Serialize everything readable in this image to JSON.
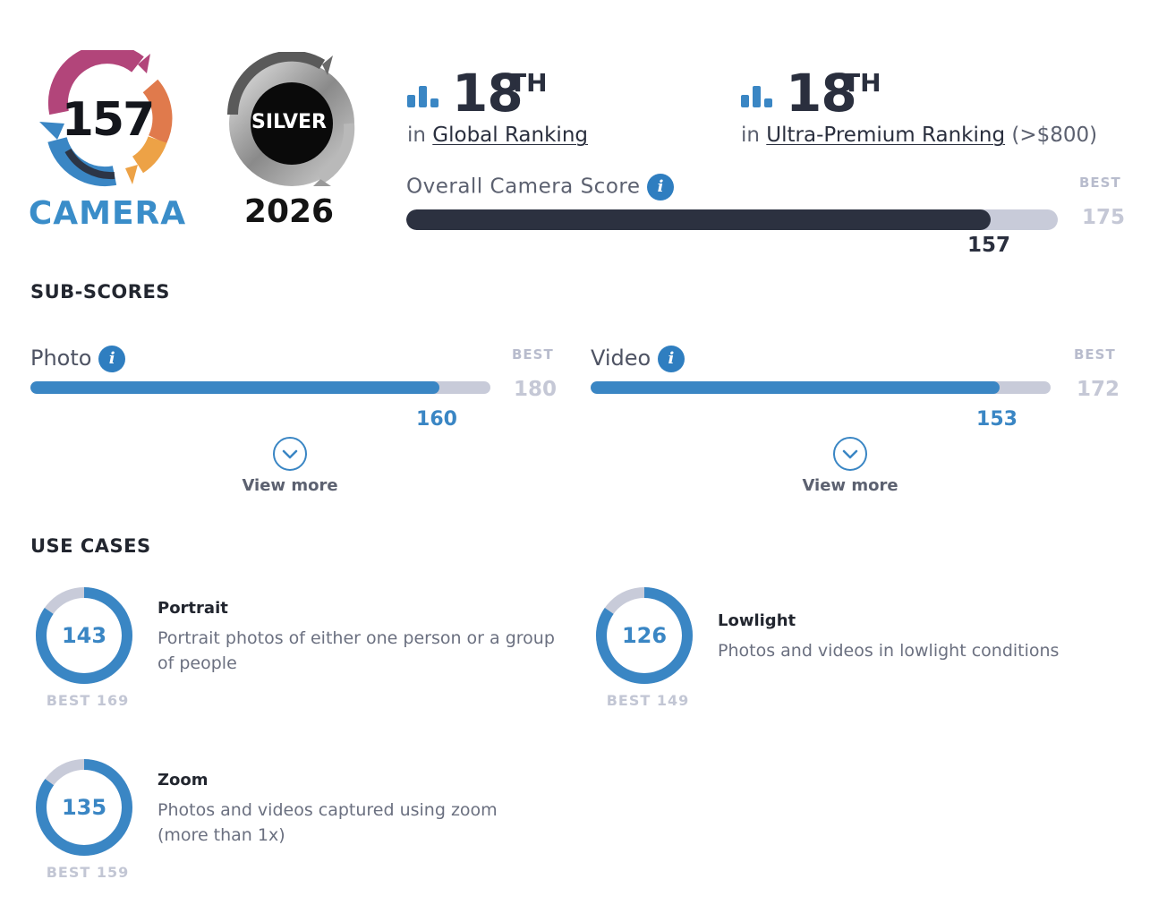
{
  "badges": {
    "camera_score": "157",
    "camera_word": "CAMERA",
    "silver_label": "SILVER",
    "year": "2026"
  },
  "rankings": [
    {
      "rank": "18",
      "suffix": "TH",
      "prefix": "in",
      "link": "Global Ranking",
      "extra": ""
    },
    {
      "rank": "18",
      "suffix": "TH",
      "prefix": "in",
      "link": "Ultra-Premium Ranking",
      "extra": "(>$800)"
    }
  ],
  "overall": {
    "label": "Overall Camera Score",
    "best_label": "BEST",
    "best": "175",
    "score": "157",
    "score_fraction": 0.897
  },
  "sub_scores": {
    "title": "SUB-SCORES",
    "items": [
      {
        "label": "Photo",
        "best_label": "BEST",
        "best": "180",
        "score": "160",
        "score_fraction": 0.889,
        "view_more": "View more"
      },
      {
        "label": "Video",
        "best_label": "BEST",
        "best": "172",
        "score": "153",
        "score_fraction": 0.89,
        "view_more": "View more"
      }
    ]
  },
  "use_cases": {
    "title": "USE CASES",
    "items": [
      {
        "score": "143",
        "best_text": "BEST 169",
        "score_fraction": 0.846,
        "title": "Portrait",
        "desc_1": "Portrait photos of either one person or a group",
        "desc_2": "of people"
      },
      {
        "score": "126",
        "best_text": "BEST 149",
        "score_fraction": 0.846,
        "title": "Lowlight",
        "desc_1": "Photos and videos in lowlight conditions",
        "desc_2": ""
      },
      {
        "score": "135",
        "best_text": "BEST 159",
        "score_fraction": 0.849,
        "title": "Zoom",
        "desc_1": "Photos and videos captured using zoom",
        "desc_2": "(more than 1x)"
      }
    ]
  },
  "colors": {
    "accent_blue": "#3a86c4",
    "dark_bar": "#2c3140",
    "track_grey": "#c8cbd9"
  },
  "icons": {
    "rank": "bar-chart-icon",
    "info": "info-icon",
    "view_more": "chevron-down-icon"
  }
}
